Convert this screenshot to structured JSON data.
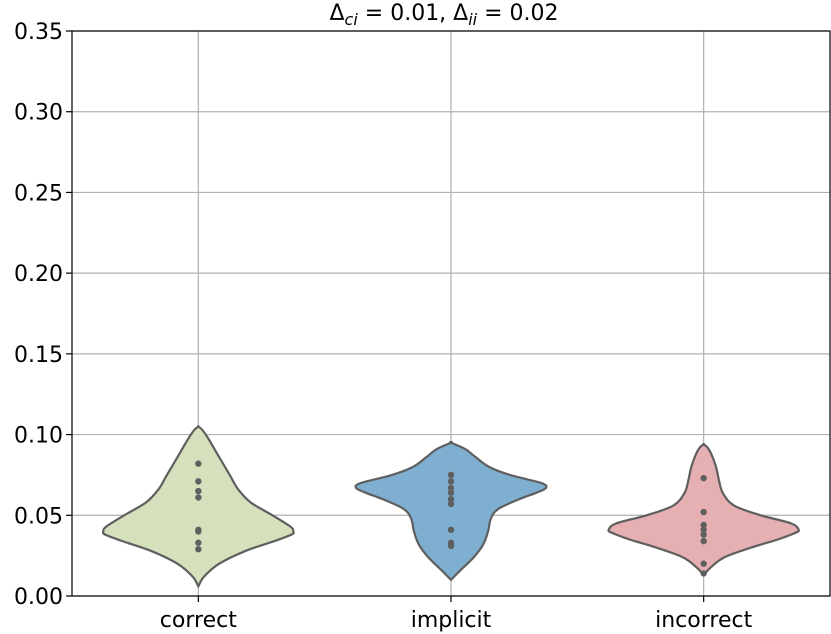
{
  "chart_data": {
    "type": "violin",
    "title_parts": {
      "delta1": "Δ",
      "sub1": "ci",
      "eq1": " = 0.01, ",
      "delta2": "Δ",
      "sub2": "ii",
      "eq2": " = 0.02"
    },
    "categories": [
      "correct",
      "implicit",
      "incorrect"
    ],
    "ylim": [
      0.0,
      0.35
    ],
    "yticks": [
      "0.00",
      "0.05",
      "0.10",
      "0.15",
      "0.20",
      "0.25",
      "0.30",
      "0.35"
    ],
    "grid": true,
    "colors": [
      "#d5e0bc",
      "#7eaed0",
      "#e6b0b2"
    ],
    "edge_color": "#5f5f5f",
    "point_color": "#5f5f5f",
    "violins": [
      {
        "name": "correct",
        "profile": [
          [
            0.006,
            0.0
          ],
          [
            0.012,
            0.06
          ],
          [
            0.02,
            0.22
          ],
          [
            0.028,
            0.5
          ],
          [
            0.034,
            0.8
          ],
          [
            0.038,
            0.98
          ],
          [
            0.04,
            1.0
          ],
          [
            0.043,
            0.97
          ],
          [
            0.05,
            0.78
          ],
          [
            0.058,
            0.55
          ],
          [
            0.066,
            0.42
          ],
          [
            0.074,
            0.34
          ],
          [
            0.082,
            0.26
          ],
          [
            0.09,
            0.18
          ],
          [
            0.098,
            0.1
          ],
          [
            0.103,
            0.04
          ],
          [
            0.105,
            0.0
          ]
        ],
        "points": [
          0.029,
          0.033,
          0.04,
          0.041,
          0.061,
          0.065,
          0.071,
          0.082
        ]
      },
      {
        "name": "implicit",
        "profile": [
          [
            0.01,
            0.0
          ],
          [
            0.016,
            0.1
          ],
          [
            0.024,
            0.24
          ],
          [
            0.032,
            0.34
          ],
          [
            0.04,
            0.39
          ],
          [
            0.048,
            0.42
          ],
          [
            0.054,
            0.5
          ],
          [
            0.06,
            0.72
          ],
          [
            0.064,
            0.9
          ],
          [
            0.067,
            1.0
          ],
          [
            0.07,
            0.95
          ],
          [
            0.075,
            0.62
          ],
          [
            0.08,
            0.4
          ],
          [
            0.086,
            0.26
          ],
          [
            0.091,
            0.15
          ],
          [
            0.095,
            0.0
          ]
        ],
        "points": [
          0.031,
          0.033,
          0.041,
          0.057,
          0.06,
          0.064,
          0.067,
          0.071,
          0.075
        ]
      },
      {
        "name": "incorrect",
        "profile": [
          [
            0.013,
            0.0
          ],
          [
            0.018,
            0.08
          ],
          [
            0.024,
            0.22
          ],
          [
            0.03,
            0.5
          ],
          [
            0.035,
            0.78
          ],
          [
            0.039,
            0.96
          ],
          [
            0.041,
            1.0
          ],
          [
            0.045,
            0.92
          ],
          [
            0.05,
            0.6
          ],
          [
            0.056,
            0.32
          ],
          [
            0.064,
            0.2
          ],
          [
            0.072,
            0.16
          ],
          [
            0.08,
            0.13
          ],
          [
            0.088,
            0.08
          ],
          [
            0.092,
            0.04
          ],
          [
            0.094,
            0.0
          ]
        ],
        "points": [
          0.014,
          0.02,
          0.034,
          0.038,
          0.041,
          0.044,
          0.052,
          0.073
        ]
      }
    ]
  }
}
